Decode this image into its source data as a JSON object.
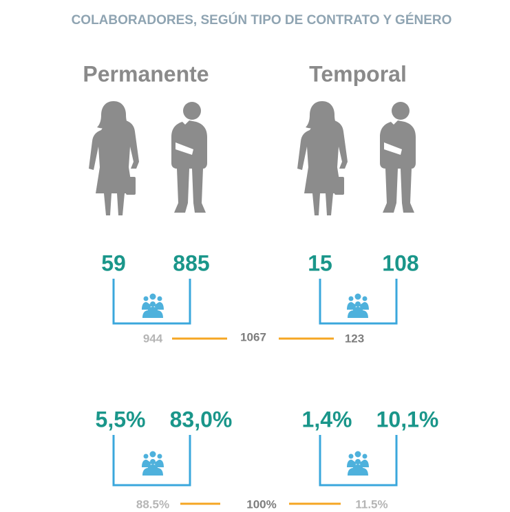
{
  "title": "COLABORADORES, SEGÚN TIPO DE CONTRATO Y GÉNERO",
  "groups": [
    {
      "label": "Permanente",
      "women": 59,
      "men": 885,
      "total": 944,
      "women_pct": "5,5%",
      "men_pct": "83,0%",
      "total_pct": "88.5%"
    },
    {
      "label": "Temporal",
      "women": 15,
      "men": 108,
      "total": 123,
      "women_pct": "1,4%",
      "men_pct": "10,1%",
      "total_pct": "11.5%"
    }
  ],
  "grand_total": 1067,
  "grand_total_pct": "100%"
}
